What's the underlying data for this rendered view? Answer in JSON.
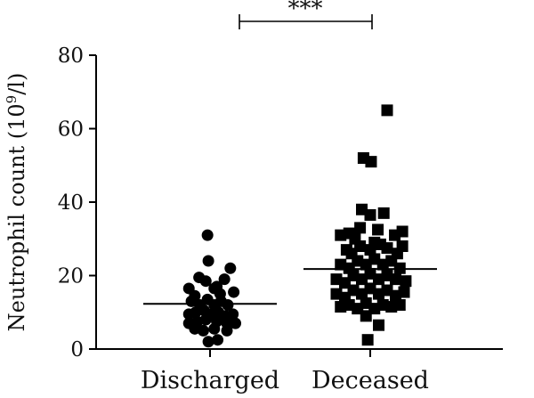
{
  "chart_data": {
    "type": "scatter",
    "title": "",
    "xlabel": "",
    "ylabel_main": "Neutrophil count (10",
    "ylabel_sup": "9",
    "ylabel_end": "/l)",
    "ylim": [
      0,
      80
    ],
    "yticks": [
      "0",
      "20",
      "40",
      "60",
      "80"
    ],
    "categories": [
      "Discharged",
      "Deceased"
    ],
    "significance": "***",
    "grid": false,
    "series": [
      {
        "category": "Discharged",
        "marker": "circle",
        "color": "#000000",
        "mean": 12.3,
        "points": [
          {
            "dx": -0.25,
            "y": 16.5
          },
          {
            "dx": -0.13,
            "y": 19.5
          },
          {
            "dx": -0.18,
            "y": 14.5
          },
          {
            "dx": -0.05,
            "y": 18.5
          },
          {
            "dx": 0.05,
            "y": 16.5
          },
          {
            "dx": 0.12,
            "y": 15
          },
          {
            "dx": 0.17,
            "y": 19
          },
          {
            "dx": 0.08,
            "y": 17
          },
          {
            "dx": 0.28,
            "y": 15.5
          },
          {
            "dx": -0.22,
            "y": 13
          },
          {
            "dx": -0.12,
            "y": 12
          },
          {
            "dx": -0.03,
            "y": 13.5
          },
          {
            "dx": 0.05,
            "y": 12
          },
          {
            "dx": 0.13,
            "y": 13
          },
          {
            "dx": 0.21,
            "y": 12
          },
          {
            "dx": -0.25,
            "y": 9.5
          },
          {
            "dx": -0.17,
            "y": 10
          },
          {
            "dx": -0.07,
            "y": 10.5
          },
          {
            "dx": 0.02,
            "y": 9.5
          },
          {
            "dx": 0.1,
            "y": 10
          },
          {
            "dx": 0.18,
            "y": 9
          },
          {
            "dx": 0.27,
            "y": 9.5
          },
          {
            "dx": -0.25,
            "y": 7
          },
          {
            "dx": -0.15,
            "y": 7.5
          },
          {
            "dx": -0.05,
            "y": 8
          },
          {
            "dx": 0.08,
            "y": 7.5
          },
          {
            "dx": 0.2,
            "y": 7
          },
          {
            "dx": 0.3,
            "y": 7
          },
          {
            "dx": -0.18,
            "y": 5.5
          },
          {
            "dx": -0.08,
            "y": 5
          },
          {
            "dx": 0.05,
            "y": 5.5
          },
          {
            "dx": 0.2,
            "y": 5
          },
          {
            "dx": -0.02,
            "y": 2
          },
          {
            "dx": 0.09,
            "y": 2.5
          },
          {
            "dx": -0.02,
            "y": 24
          },
          {
            "dx": 0.24,
            "y": 22
          },
          {
            "dx": -0.03,
            "y": 31
          }
        ]
      },
      {
        "category": "Deceased",
        "marker": "square",
        "color": "#000000",
        "mean": 21.8,
        "points": [
          {
            "dx": 0.2,
            "y": 65
          },
          {
            "dx": -0.08,
            "y": 52
          },
          {
            "dx": 0.01,
            "y": 51
          },
          {
            "dx": -0.1,
            "y": 38
          },
          {
            "dx": 0.0,
            "y": 36.5
          },
          {
            "dx": 0.16,
            "y": 37
          },
          {
            "dx": -0.25,
            "y": 31.5
          },
          {
            "dx": -0.18,
            "y": 30
          },
          {
            "dx": 0.05,
            "y": 29
          },
          {
            "dx": 0.29,
            "y": 31
          },
          {
            "dx": 0.38,
            "y": 32
          },
          {
            "dx": -0.35,
            "y": 31
          },
          {
            "dx": -0.12,
            "y": 33
          },
          {
            "dx": 0.09,
            "y": 32.5
          },
          {
            "dx": -0.28,
            "y": 27
          },
          {
            "dx": -0.22,
            "y": 26
          },
          {
            "dx": -0.12,
            "y": 28
          },
          {
            "dx": 0.0,
            "y": 27
          },
          {
            "dx": 0.12,
            "y": 28.5
          },
          {
            "dx": 0.2,
            "y": 27.5
          },
          {
            "dx": 0.32,
            "y": 26
          },
          {
            "dx": 0.38,
            "y": 28
          },
          {
            "dx": -0.35,
            "y": 23
          },
          {
            "dx": -0.25,
            "y": 22
          },
          {
            "dx": -0.15,
            "y": 24
          },
          {
            "dx": -0.05,
            "y": 23
          },
          {
            "dx": 0.05,
            "y": 24.5
          },
          {
            "dx": 0.15,
            "y": 23
          },
          {
            "dx": 0.25,
            "y": 24
          },
          {
            "dx": 0.35,
            "y": 22
          },
          {
            "dx": -0.4,
            "y": 19
          },
          {
            "dx": -0.3,
            "y": 18
          },
          {
            "dx": -0.2,
            "y": 20
          },
          {
            "dx": -0.1,
            "y": 19
          },
          {
            "dx": 0.0,
            "y": 20.5
          },
          {
            "dx": 0.1,
            "y": 19
          },
          {
            "dx": 0.2,
            "y": 20
          },
          {
            "dx": 0.3,
            "y": 19
          },
          {
            "dx": 0.42,
            "y": 18.5
          },
          {
            "dx": -0.4,
            "y": 15
          },
          {
            "dx": -0.3,
            "y": 14
          },
          {
            "dx": -0.2,
            "y": 16
          },
          {
            "dx": -0.1,
            "y": 15
          },
          {
            "dx": 0.0,
            "y": 16.5
          },
          {
            "dx": 0.1,
            "y": 15
          },
          {
            "dx": 0.2,
            "y": 16
          },
          {
            "dx": 0.3,
            "y": 14.5
          },
          {
            "dx": 0.4,
            "y": 15.5
          },
          {
            "dx": -0.35,
            "y": 11.5
          },
          {
            "dx": -0.25,
            "y": 12
          },
          {
            "dx": -0.15,
            "y": 11
          },
          {
            "dx": -0.05,
            "y": 12.5
          },
          {
            "dx": 0.05,
            "y": 11
          },
          {
            "dx": 0.15,
            "y": 12
          },
          {
            "dx": 0.25,
            "y": 11.5
          },
          {
            "dx": 0.35,
            "y": 12
          },
          {
            "dx": -0.05,
            "y": 9
          },
          {
            "dx": 0.1,
            "y": 6.5
          },
          {
            "dx": -0.03,
            "y": 2.5
          }
        ]
      }
    ]
  }
}
